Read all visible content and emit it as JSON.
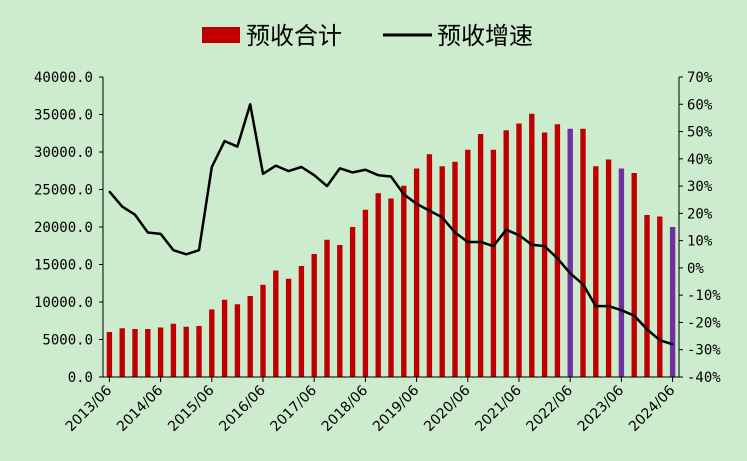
{
  "chart_data": {
    "type": "bar+line",
    "legend": {
      "position": "top",
      "entries": [
        {
          "label": "预收合计",
          "kind": "bar",
          "color": "#c00000"
        },
        {
          "label": "预收增速",
          "kind": "line",
          "color": "#000000"
        }
      ]
    },
    "colors": {
      "bar": "#c00000",
      "bar_highlight": "#7030a0",
      "line": "#000000",
      "background": "#cdeccd"
    },
    "y_left": {
      "min": 0,
      "max": 40000,
      "ticks": [
        "0.0",
        "5000.0",
        "10000.0",
        "15000.0",
        "20000.0",
        "25000.0",
        "30000.0",
        "35000.0",
        "40000.0"
      ]
    },
    "y_right": {
      "min": -40,
      "max": 70,
      "ticks": [
        "-40%",
        "-30%",
        "-20%",
        "-10%",
        "0%",
        "10%",
        "20%",
        "30%",
        "40%",
        "50%",
        "60%",
        "70%"
      ]
    },
    "x_tick_labels": [
      "2013/06",
      "2014/06",
      "2015/06",
      "2016/06",
      "2017/06",
      "2018/06",
      "2019/06",
      "2020/06",
      "2021/06",
      "2022/06",
      "2023/06",
      "2024/06"
    ],
    "grid": false,
    "bars": [
      6000,
      6500,
      6400,
      6400,
      6600,
      7100,
      6700,
      6800,
      9000,
      10300,
      9700,
      10800,
      12300,
      14200,
      13100,
      14800,
      16400,
      18300,
      17600,
      20000,
      22300,
      24500,
      23800,
      25500,
      27800,
      29700,
      28100,
      28700,
      30300,
      32400,
      30300,
      32900,
      33800,
      35100,
      32600,
      33700,
      33100,
      33100,
      28100,
      29000,
      27800,
      27200,
      21600,
      21400,
      20000
    ],
    "highlight_bar_indices": [
      36,
      40,
      44
    ],
    "line": [
      28,
      22.5,
      19.5,
      13,
      12.5,
      6.5,
      5,
      6.5,
      37,
      46.5,
      44.5,
      60,
      34.5,
      37.5,
      35.5,
      37,
      34,
      30,
      36.5,
      35,
      36,
      34,
      33.5,
      27,
      23.5,
      21,
      18.5,
      13,
      9.5,
      9.5,
      8,
      14,
      12,
      8.5,
      8,
      3.5,
      -2,
      -6,
      -14,
      -14,
      -15.5,
      -17.5,
      -22.5,
      -26.5,
      -28
    ]
  }
}
